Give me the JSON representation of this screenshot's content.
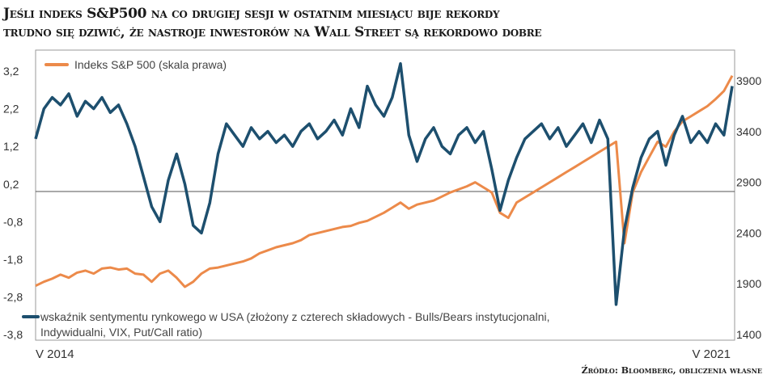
{
  "chart_data": {
    "type": "line",
    "title_lines": [
      "Jeśli indeks S&P500 na co drugiej sesji w ostatnim miesiącu bije rekordy",
      "trudno się dziwić, że nastroje inwestorów na Wall Street są rekordowo dobre"
    ],
    "x_labels": [
      "V 2014",
      "V 2021"
    ],
    "left_axis": {
      "ticks": [
        "3,2",
        "2,2",
        "1,2",
        "0,2",
        "-0,8",
        "-1,8",
        "-2,8",
        "-3,8"
      ],
      "tick_values": [
        3.2,
        2.2,
        1.2,
        0.2,
        -0.8,
        -1.8,
        -2.8,
        -3.8
      ],
      "range": [
        -3.8,
        3.2
      ],
      "reference_line": 0
    },
    "right_axis": {
      "ticks": [
        "3900",
        "3400",
        "2900",
        "2400",
        "1900",
        "1400"
      ],
      "tick_values": [
        3900,
        3400,
        2900,
        2400,
        1900,
        1400
      ],
      "range": [
        1400,
        4100
      ]
    },
    "series": [
      {
        "name": "Indeks S&P 500 (skala prawa)",
        "axis": "right",
        "color": "#ec8a4a",
        "values": [
          1880,
          1920,
          1950,
          1990,
          1960,
          2010,
          2030,
          2000,
          2050,
          2060,
          2040,
          2050,
          2000,
          1990,
          1920,
          2000,
          2030,
          1960,
          1870,
          1920,
          2000,
          2050,
          2060,
          2080,
          2100,
          2120,
          2150,
          2200,
          2230,
          2260,
          2280,
          2300,
          2330,
          2380,
          2400,
          2420,
          2440,
          2460,
          2470,
          2500,
          2520,
          2560,
          2600,
          2650,
          2700,
          2640,
          2680,
          2700,
          2720,
          2760,
          2800,
          2830,
          2860,
          2900,
          2850,
          2800,
          2600,
          2550,
          2700,
          2750,
          2800,
          2850,
          2900,
          2950,
          3000,
          3050,
          3100,
          3150,
          3200,
          3250,
          3300,
          2300,
          2800,
          3000,
          3150,
          3300,
          3250,
          3400,
          3500,
          3550,
          3600,
          3650,
          3720,
          3800,
          3950
        ]
      },
      {
        "name_line1": "wskaźnik sentymentu rynkowego w USA (złożony z czterech składowych - Bulls/Bears instytucjonalni,",
        "name_line2": "Indywidualni, VIX, Put/Call ratio)",
        "axis": "left",
        "color": "#1d4f6e",
        "values": [
          1.4,
          2.2,
          2.5,
          2.3,
          2.6,
          2.0,
          2.4,
          2.2,
          2.5,
          2.1,
          2.3,
          1.8,
          1.2,
          0.4,
          -0.4,
          -0.8,
          0.3,
          1.0,
          0.2,
          -0.9,
          -1.1,
          -0.3,
          1.0,
          1.8,
          1.5,
          1.2,
          1.7,
          1.4,
          1.6,
          1.3,
          1.5,
          1.2,
          1.6,
          1.8,
          1.4,
          1.6,
          1.9,
          1.5,
          2.2,
          1.7,
          2.8,
          2.3,
          2.0,
          2.5,
          3.4,
          1.5,
          0.8,
          1.4,
          1.7,
          1.2,
          1.0,
          1.5,
          1.7,
          1.3,
          1.6,
          0.6,
          -0.5,
          0.3,
          0.9,
          1.4,
          1.6,
          1.8,
          1.4,
          1.7,
          1.2,
          1.5,
          1.8,
          1.3,
          1.9,
          1.4,
          -3.0,
          -1.0,
          0.1,
          0.9,
          1.4,
          1.6,
          0.7,
          1.5,
          2.0,
          1.3,
          1.6,
          1.3,
          1.8,
          1.5,
          2.8
        ]
      }
    ],
    "source": "Źródło: Bloomberg, obliczenia własne"
  }
}
